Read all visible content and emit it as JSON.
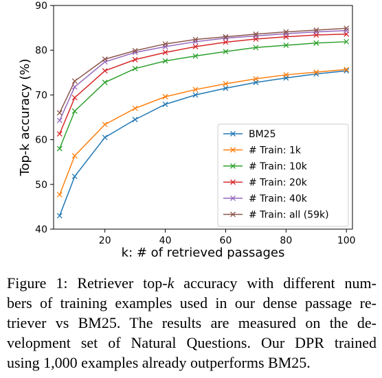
{
  "chart_data": {
    "type": "line",
    "xlabel": "k: # of retrieved passages",
    "ylabel": "Top-k accuracy (%)",
    "xlim": [
      3,
      102
    ],
    "ylim": [
      40,
      90
    ],
    "xticks": [
      20,
      40,
      60,
      80,
      100
    ],
    "yticks": [
      40,
      50,
      60,
      70,
      80,
      90
    ],
    "grid": false,
    "legend_position": "lower-right",
    "marker": "x",
    "x": [
      5,
      10,
      20,
      30,
      40,
      50,
      60,
      70,
      80,
      90,
      100
    ],
    "series": [
      {
        "name": "BM25",
        "color": "#1f77b4",
        "values": [
          43.0,
          51.8,
          60.5,
          64.5,
          67.9,
          70.0,
          71.5,
          72.8,
          73.8,
          74.7,
          75.4
        ]
      },
      {
        "name": "# Train: 1k",
        "color": "#ff7f0e",
        "values": [
          47.7,
          56.4,
          63.4,
          67.0,
          69.6,
          71.2,
          72.5,
          73.6,
          74.5,
          75.1,
          75.7
        ]
      },
      {
        "name": "# Train: 10k",
        "color": "#2ca02c",
        "values": [
          58.0,
          66.4,
          72.8,
          75.9,
          77.6,
          78.7,
          79.7,
          80.6,
          81.1,
          81.6,
          81.9
        ]
      },
      {
        "name": "# Train: 20k",
        "color": "#d62728",
        "values": [
          61.3,
          69.4,
          75.4,
          77.9,
          79.5,
          80.8,
          81.8,
          82.5,
          83.0,
          83.4,
          83.6
        ]
      },
      {
        "name": "# Train: 40k",
        "color": "#9467bd",
        "values": [
          64.3,
          71.8,
          77.4,
          79.5,
          80.8,
          81.9,
          82.7,
          83.2,
          83.7,
          84.1,
          84.4
        ]
      },
      {
        "name": "# Train: all (59k)",
        "color": "#8c564b",
        "values": [
          66.0,
          73.1,
          78.0,
          79.9,
          81.4,
          82.4,
          83.0,
          83.6,
          84.1,
          84.5,
          84.9
        ]
      }
    ]
  },
  "caption": {
    "lines": [
      [
        "Figure 1: Retriever top-",
        "k",
        " accuracy with different num-"
      ],
      [
        "bers of training examples used in our dense passage re-"
      ],
      [
        "triever vs BM25.  The results are measured on the de-"
      ],
      [
        "velopment set of Natural Questions.  Our DPR trained"
      ],
      [
        "using 1,000 examples already outperforms BM25."
      ]
    ]
  }
}
